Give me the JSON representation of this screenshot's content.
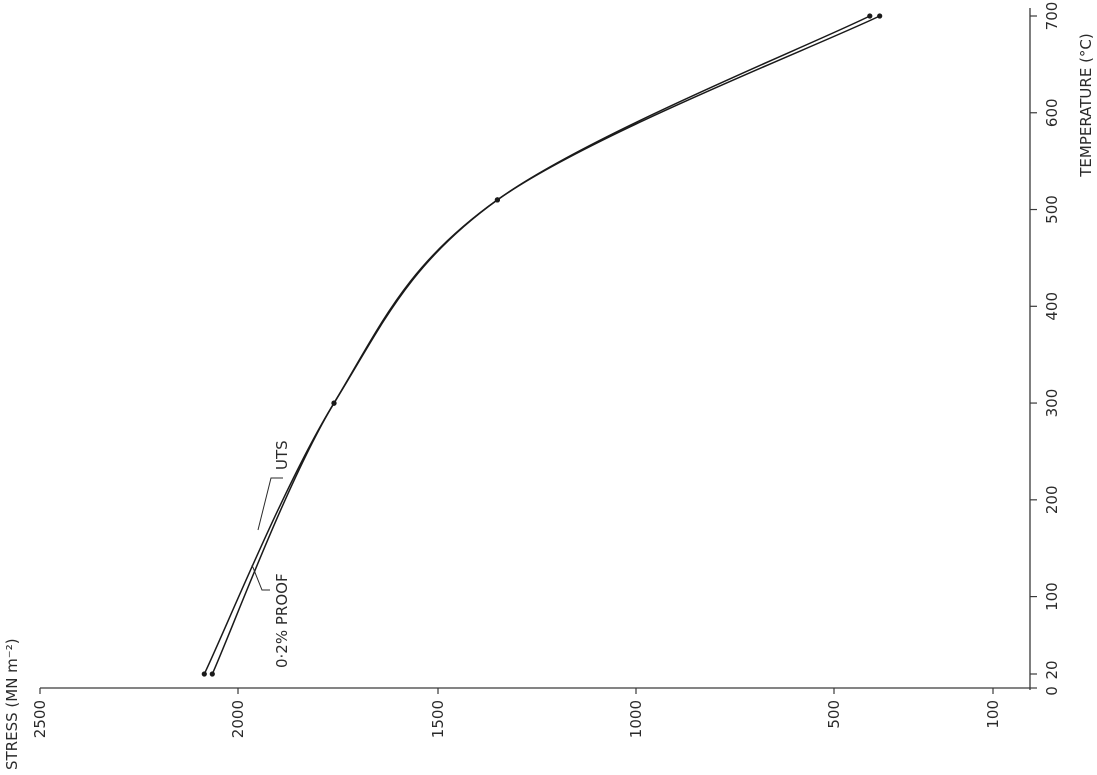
{
  "chart_data": {
    "type": "line",
    "orientation": "rotated-90-ccw",
    "xlabel": "TEMPERATURE (°C)",
    "ylabel": "STRESS (MN m⁻²)",
    "xlim": [
      0,
      700
    ],
    "ylim": [
      2500,
      100
    ],
    "xticks": [
      {
        "value": 0,
        "label": "0"
      },
      {
        "value": 20,
        "label": "20"
      },
      {
        "value": 100,
        "label": "100"
      },
      {
        "value": 200,
        "label": "200"
      },
      {
        "value": 300,
        "label": "300"
      },
      {
        "value": 400,
        "label": "400"
      },
      {
        "value": 500,
        "label": "500"
      },
      {
        "value": 600,
        "label": "600"
      },
      {
        "value": 700,
        "label": "700"
      }
    ],
    "yticks": [
      {
        "value": 2500,
        "label": "2500"
      },
      {
        "value": 2000,
        "label": "2000"
      },
      {
        "value": 1500,
        "label": "1500"
      },
      {
        "value": 1000,
        "label": "1000"
      },
      {
        "value": 500,
        "label": "500"
      },
      {
        "value": 100,
        "label": "100"
      }
    ],
    "grid": false,
    "series": [
      {
        "name": "UTS",
        "label": "UTS",
        "x": [
          20,
          300,
          510,
          700
        ],
        "y": [
          2085,
          1760,
          1350,
          410
        ]
      },
      {
        "name": "0·2% PROOF",
        "label": "0·2% PROOF",
        "x": [
          20,
          300,
          510,
          700
        ],
        "y": [
          2065,
          1760,
          1350,
          385
        ]
      }
    ]
  }
}
